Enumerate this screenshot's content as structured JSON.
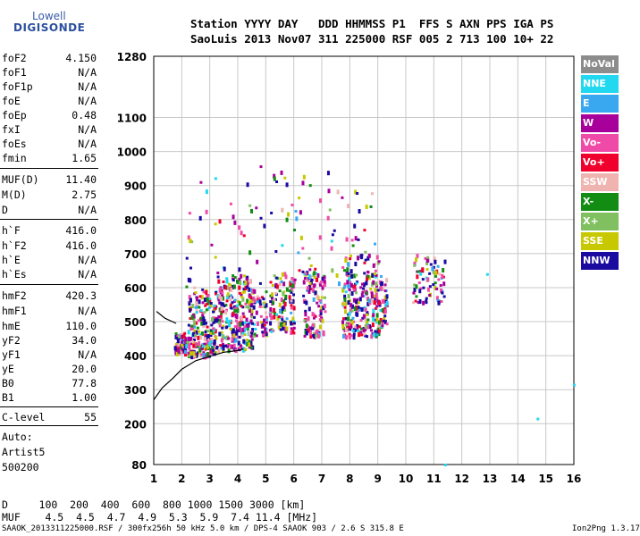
{
  "logo": {
    "line1": "Lowell",
    "line2": "DIGISONDE"
  },
  "header": {
    "line1": "Station YYYY DAY   DDD HHMMSS P1  FFS S AXN PPS IGA PS",
    "line2": "SaoLuis 2013 Nov07 311 225000 RSF 005 2 713 100 10+ 22"
  },
  "params": [
    {
      "name": "foF2",
      "value": "4.150"
    },
    {
      "name": "foF1",
      "value": "N/A"
    },
    {
      "name": "foF1p",
      "value": "N/A"
    },
    {
      "name": "foE",
      "value": "N/A"
    },
    {
      "name": "foEp",
      "value": "0.48"
    },
    {
      "name": "fxI",
      "value": "N/A"
    },
    {
      "name": "foEs",
      "value": "N/A"
    },
    {
      "name": "fmin",
      "value": "1.65"
    },
    {
      "name": "MUF(D)",
      "value": "11.40"
    },
    {
      "name": "M(D)",
      "value": "2.75"
    },
    {
      "name": "D",
      "value": "N/A"
    },
    {
      "name": "h`F",
      "value": "416.0"
    },
    {
      "name": "h`F2",
      "value": "416.0"
    },
    {
      "name": "h`E",
      "value": "N/A"
    },
    {
      "name": "h`Es",
      "value": "N/A"
    },
    {
      "name": "hmF2",
      "value": "420.3"
    },
    {
      "name": "hmF1",
      "value": "N/A"
    },
    {
      "name": "hmE",
      "value": "110.0"
    },
    {
      "name": "yF2",
      "value": "34.0"
    },
    {
      "name": "yF1",
      "value": "N/A"
    },
    {
      "name": "yE",
      "value": "20.0"
    },
    {
      "name": "B0",
      "value": "77.8"
    },
    {
      "name": "B1",
      "value": "1.00"
    },
    {
      "name": "C-level",
      "value": "55"
    }
  ],
  "notes": {
    "line1": "Auto:",
    "line2": "Artist5",
    "line3": "500200"
  },
  "legend": [
    {
      "label": "NoVal",
      "color": "#8c8c8c"
    },
    {
      "label": "NNE",
      "color": "#22d8f0"
    },
    {
      "label": "E",
      "color": "#3aa8f0"
    },
    {
      "label": "W",
      "color": "#a8009a"
    },
    {
      "label": "Vo-",
      "color": "#f04aa8"
    },
    {
      "label": "Vo+",
      "color": "#f0002c"
    },
    {
      "label": "SSW",
      "color": "#f0b4b0"
    },
    {
      "label": "X-",
      "color": "#128c12"
    },
    {
      "label": "X+",
      "color": "#80c060"
    },
    {
      "label": "SSE",
      "color": "#c8c800"
    },
    {
      "label": "NNW",
      "color": "#1a0aa0"
    }
  ],
  "footer": {
    "line1": "D     100  200  400  600  800 1000 1500 3000 [km]",
    "line2": "MUF    4.5  4.5  4.7  4.9  5.3  5.9  7.4 11.4 [MHz]",
    "line3": "SAAOK_2013311225000.RSF / 300fx256h 50 kHz 5.0 km / DPS-4 SAAOK 903 / 2.6 S 315.8 E",
    "line4": "Ion2Png 1.3.17"
  },
  "chart_data": {
    "type": "scatter",
    "xlim": [
      1,
      16
    ],
    "ylim": [
      80,
      1280
    ],
    "x_ticks": [
      1,
      2,
      3,
      4,
      5,
      6,
      7,
      8,
      9,
      10,
      11,
      12,
      13,
      14,
      15,
      16
    ],
    "y_ticks": [
      80,
      200,
      300,
      400,
      500,
      600,
      700,
      800,
      900,
      1000,
      1100,
      1280
    ],
    "grid": true,
    "clusters": [
      {
        "x0": 1.7,
        "x1": 2.2,
        "y0": 410,
        "y1": 470,
        "count": 80
      },
      {
        "x0": 2.2,
        "x1": 3.2,
        "y0": 400,
        "y1": 600,
        "count": 220
      },
      {
        "x0": 3.2,
        "x1": 4.5,
        "y0": 420,
        "y1": 640,
        "count": 260
      },
      {
        "x0": 4.4,
        "x1": 5.0,
        "y0": 460,
        "y1": 600,
        "count": 60
      },
      {
        "x0": 5.1,
        "x1": 6.0,
        "y0": 470,
        "y1": 640,
        "count": 110
      },
      {
        "x0": 6.3,
        "x1": 7.1,
        "y0": 460,
        "y1": 660,
        "count": 120
      },
      {
        "x0": 7.7,
        "x1": 9.0,
        "y0": 460,
        "y1": 700,
        "count": 230
      },
      {
        "x0": 9.0,
        "x1": 9.3,
        "y0": 480,
        "y1": 640,
        "count": 40
      },
      {
        "x0": 10.2,
        "x1": 11.4,
        "y0": 560,
        "y1": 700,
        "count": 80
      },
      {
        "x0": 2.0,
        "x1": 9.0,
        "y0": 600,
        "y1": 960,
        "count": 120
      }
    ],
    "trace": {
      "x": [
        1.0,
        1.3,
        1.7,
        2.0,
        2.5,
        3.0,
        3.5,
        4.0,
        4.2
      ],
      "y": [
        270,
        305,
        335,
        360,
        385,
        398,
        410,
        415,
        420
      ]
    },
    "trace2": {
      "x": [
        1.1,
        1.4,
        1.8
      ],
      "y": [
        530,
        510,
        495
      ]
    },
    "outliers": [
      {
        "x": 14.7,
        "y": 215
      },
      {
        "x": 16.0,
        "y": 315
      },
      {
        "x": 11.4,
        "y": 80
      },
      {
        "x": 12.9,
        "y": 640
      }
    ]
  }
}
